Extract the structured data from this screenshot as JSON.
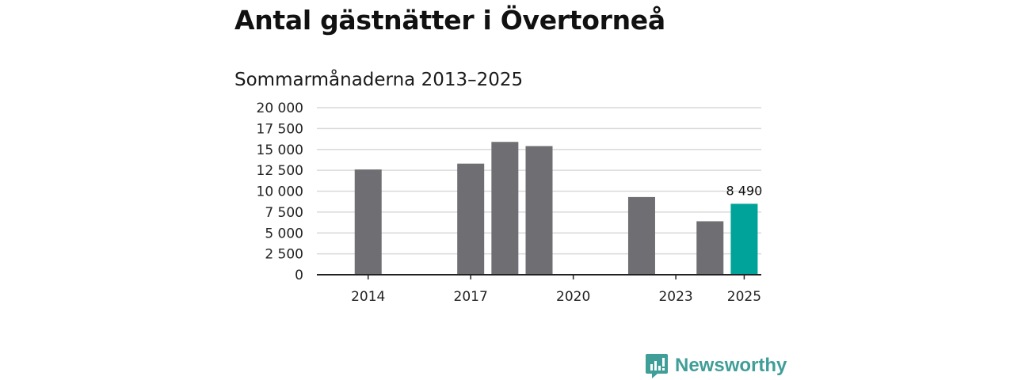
{
  "header": {
    "title": "Antal gästnätter i Övertorneå",
    "subtitle": "Sommarmånaderna 2013–2025"
  },
  "brand": {
    "name": "Newsworthy",
    "icon": "newsworthy-logo-icon",
    "color": "#3f9e98"
  },
  "colors": {
    "bar": "#6e6e73",
    "highlight": "#00a39a",
    "grid": "#d9d9d9",
    "axis": "#222222"
  },
  "chart_data": {
    "type": "bar",
    "title": "Antal gästnätter i Övertorneå",
    "subtitle": "Sommarmånaderna 2013–2025",
    "xlabel": "",
    "ylabel": "",
    "categories": [
      2013,
      2014,
      2015,
      2016,
      2017,
      2018,
      2019,
      2020,
      2021,
      2022,
      2023,
      2024,
      2025
    ],
    "values": [
      null,
      12600,
      null,
      null,
      13300,
      15900,
      15400,
      null,
      null,
      9300,
      null,
      6400,
      8490
    ],
    "highlight_category": 2025,
    "ylim": [
      0,
      20000
    ],
    "yticks": [
      {
        "value": 0,
        "label": "0"
      },
      {
        "value": 2500,
        "label": "2 500"
      },
      {
        "value": 5000,
        "label": "5 000"
      },
      {
        "value": 7500,
        "label": "7 500"
      },
      {
        "value": 10000,
        "label": "10 000"
      },
      {
        "value": 12500,
        "label": "12 500"
      },
      {
        "value": 15000,
        "label": "15 000"
      },
      {
        "value": 17500,
        "label": "17 500"
      },
      {
        "value": 20000,
        "label": "20 000"
      }
    ],
    "xticks": [
      {
        "value": 2014,
        "label": "2014"
      },
      {
        "value": 2017,
        "label": "2017"
      },
      {
        "value": 2020,
        "label": "2020"
      },
      {
        "value": 2023,
        "label": "2023"
      },
      {
        "value": 2025,
        "label": "2025"
      }
    ],
    "data_labels": [
      {
        "category": 2025,
        "label": "8 490"
      }
    ],
    "grid": true,
    "legend": "none"
  }
}
